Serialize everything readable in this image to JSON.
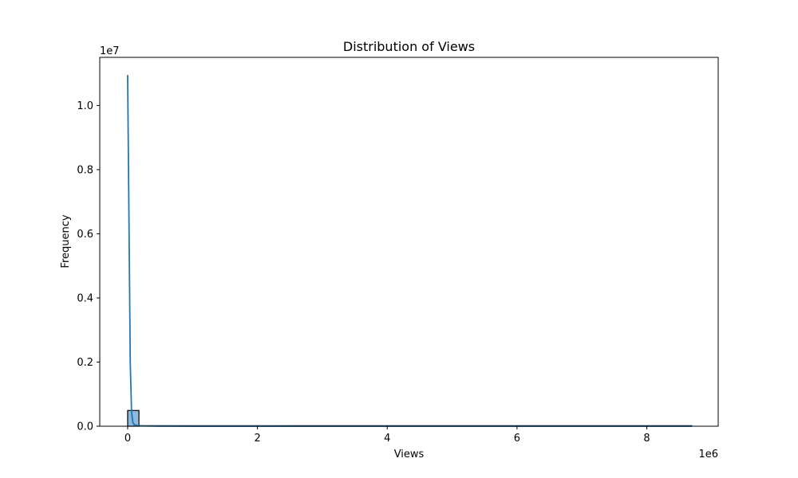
{
  "chart_data": {
    "type": "bar",
    "subtype": "histogram-with-kde",
    "title": "Distribution of Views",
    "xlabel": "Views",
    "ylabel": "Frequency",
    "x_offset_label": "1e6",
    "y_offset_label": "1e7",
    "x_multiplier": 1000000,
    "y_multiplier": 10000000,
    "xlim": [
      -430000,
      9100000
    ],
    "ylim": [
      0,
      11500000
    ],
    "x_ticks": [
      0,
      2000000,
      4000000,
      6000000,
      8000000
    ],
    "x_tick_labels": [
      "0",
      "2",
      "4",
      "6",
      "8"
    ],
    "y_ticks": [
      0,
      2000000,
      4000000,
      6000000,
      8000000,
      10000000
    ],
    "y_tick_labels": [
      "0.0",
      "0.2",
      "0.4",
      "0.6",
      "0.8",
      "1.0"
    ],
    "bin_width": 174000,
    "bins": [
      {
        "x_start": 0,
        "x_end": 174000,
        "count": 490000
      }
    ],
    "x_end": 8700000,
    "kde": {
      "x": [
        0,
        20000,
        40000,
        60000,
        80000,
        100000,
        150000,
        250000,
        500000,
        1000000,
        2000000,
        4000000,
        6000000,
        8000000,
        8700000
      ],
      "y": [
        10950000,
        6500000,
        2000000,
        450000,
        120000,
        50000,
        20000,
        10000,
        5000,
        2000,
        1000,
        500,
        200,
        100,
        50
      ]
    },
    "colors": {
      "bar_fill": "#8fb8dc",
      "bar_edge": "#000000",
      "kde_line": "#1f77b4"
    },
    "grid": false,
    "legend": "none"
  }
}
